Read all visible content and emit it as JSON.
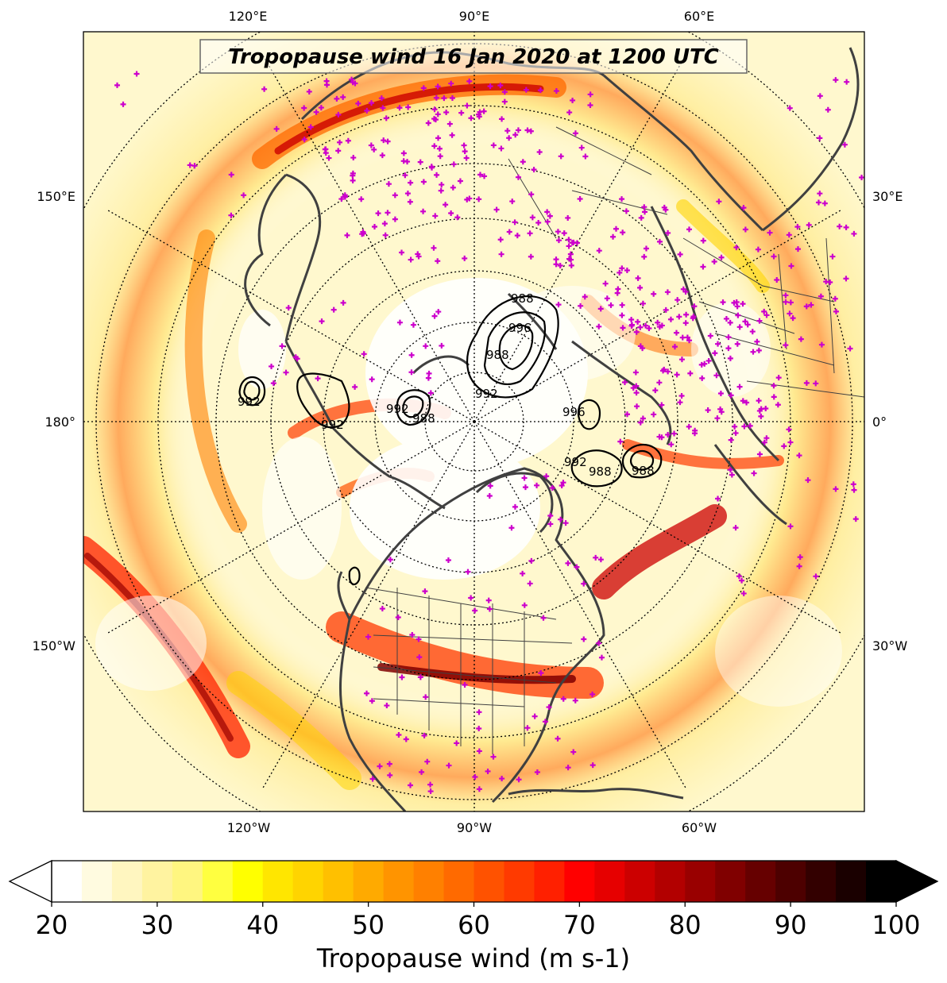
{
  "title": "Tropopause wind 16 Jan 2020 at 1200 UTC",
  "lon_labels": {
    "top": [
      "120°E",
      "90°E",
      "60°E"
    ],
    "bottom": [
      "120°W",
      "90°W",
      "60°W"
    ],
    "left": [
      "150°E",
      "180°",
      "150°W"
    ],
    "right": [
      "30°E",
      "0°",
      "30°W"
    ]
  },
  "contour_labels": [
    "988",
    "992",
    "996",
    "992",
    "992",
    "988",
    "988",
    "992",
    "996",
    "988",
    "992",
    "988"
  ],
  "colorbar": {
    "label": "Tropopause wind (m s-1)",
    "min": 20,
    "max": 100,
    "ticks": [
      "20",
      "30",
      "40",
      "50",
      "60",
      "70",
      "80",
      "90",
      "100"
    ],
    "colors": [
      "#ffffff",
      "#fffbe0",
      "#fff6c0",
      "#fff3a0",
      "#fff680",
      "#ffff40",
      "#ffff00",
      "#ffe600",
      "#ffd400",
      "#ffc000",
      "#ffaa00",
      "#ff9400",
      "#ff8000",
      "#ff6a00",
      "#ff5200",
      "#ff3a00",
      "#ff2000",
      "#ff0000",
      "#e60000",
      "#cc0000",
      "#b20000",
      "#990000",
      "#800000",
      "#660000",
      "#4d0000",
      "#330000",
      "#1a0000",
      "#000000"
    ]
  },
  "map_colors": {
    "coast": "#404040",
    "station_marker": "#cc00cc",
    "contour": "#000000"
  },
  "projection": "north-polar-stereographic",
  "center_longitude": "90°W"
}
